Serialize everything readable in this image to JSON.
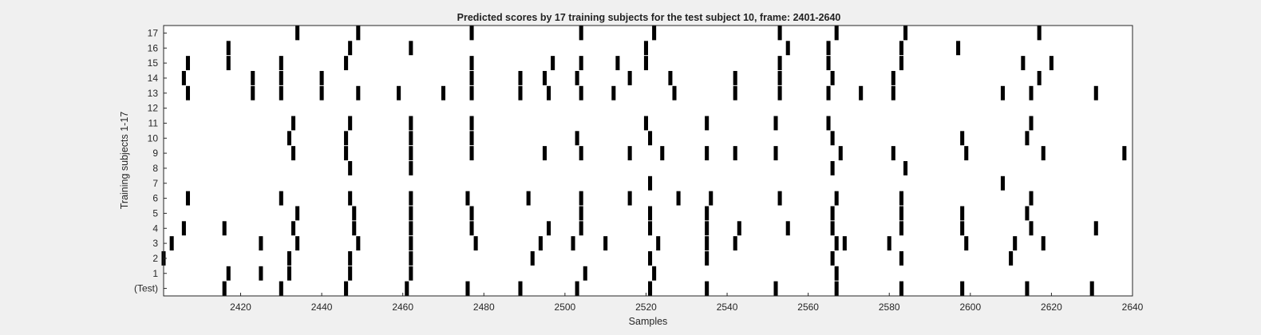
{
  "chart_data": {
    "type": "raster",
    "title": "Predicted scores by 17 training subjects for the test subject 10, frame: 2401-2640",
    "xlabel": "Samples",
    "ylabel": "Training subjects 1-17",
    "xlim": [
      2401,
      2640
    ],
    "x_ticks": [
      2420,
      2440,
      2460,
      2480,
      2500,
      2520,
      2540,
      2560,
      2580,
      2600,
      2620,
      2640
    ],
    "y_tick_labels": [
      "(Test)",
      "1",
      "2",
      "3",
      "4",
      "5",
      "6",
      "7",
      "8",
      "9",
      "10",
      "11",
      "12",
      "13",
      "14",
      "15",
      "16",
      "17"
    ],
    "mark_color": "#000000",
    "grid": false,
    "rows": [
      {
        "label": "(Test)",
        "x": [
          2416,
          2430,
          2446,
          2461,
          2476,
          2489,
          2503,
          2521,
          2535,
          2552,
          2567,
          2583,
          2598,
          2614,
          2630
        ]
      },
      {
        "label": "1",
        "x": [
          2417,
          2425,
          2432,
          2447,
          2462,
          2505,
          2522,
          2567
        ]
      },
      {
        "label": "2",
        "x": [
          2401,
          2432,
          2447,
          2462,
          2492,
          2521,
          2535,
          2566,
          2583,
          2610
        ]
      },
      {
        "label": "3",
        "x": [
          2403,
          2425,
          2434,
          2449,
          2462,
          2478,
          2494,
          2502,
          2510,
          2523,
          2535,
          2542,
          2567,
          2569,
          2580,
          2599,
          2611,
          2618
        ]
      },
      {
        "label": "4",
        "x": [
          2406,
          2416,
          2433,
          2448,
          2462,
          2477,
          2496,
          2504,
          2521,
          2535,
          2543,
          2555,
          2566,
          2583,
          2598,
          2615,
          2631
        ]
      },
      {
        "label": "5",
        "x": [
          2434,
          2448,
          2462,
          2477,
          2504,
          2521,
          2535,
          2566,
          2583,
          2598,
          2614
        ]
      },
      {
        "label": "6",
        "x": [
          2407,
          2430,
          2447,
          2462,
          2476,
          2491,
          2504,
          2516,
          2528,
          2536,
          2553,
          2567,
          2583,
          2615
        ]
      },
      {
        "label": "7",
        "x": [
          2521,
          2608
        ]
      },
      {
        "label": "8",
        "x": [
          2447,
          2462,
          2566,
          2584
        ]
      },
      {
        "label": "9",
        "x": [
          2433,
          2446,
          2462,
          2477,
          2495,
          2504,
          2516,
          2524,
          2535,
          2542,
          2552,
          2568,
          2581,
          2599,
          2618,
          2638
        ]
      },
      {
        "label": "10",
        "x": [
          2432,
          2446,
          2462,
          2477,
          2503,
          2521,
          2566,
          2598,
          2614
        ]
      },
      {
        "label": "11",
        "x": [
          2433,
          2447,
          2462,
          2477,
          2520,
          2535,
          2552,
          2565,
          2615
        ]
      },
      {
        "label": "12",
        "x": []
      },
      {
        "label": "13",
        "x": [
          2407,
          2423,
          2430,
          2440,
          2449,
          2459,
          2470,
          2477,
          2489,
          2496,
          2504,
          2512,
          2527,
          2542,
          2553,
          2565,
          2573,
          2581,
          2608,
          2615,
          2631
        ]
      },
      {
        "label": "14",
        "x": [
          2406,
          2423,
          2430,
          2440,
          2477,
          2489,
          2495,
          2503,
          2516,
          2526,
          2542,
          2553,
          2566,
          2581,
          2617
        ]
      },
      {
        "label": "15",
        "x": [
          2407,
          2417,
          2430,
          2446,
          2477,
          2497,
          2504,
          2513,
          2520,
          2553,
          2565,
          2583,
          2613,
          2620
        ]
      },
      {
        "label": "16",
        "x": [
          2417,
          2447,
          2462,
          2520,
          2555,
          2565,
          2583,
          2597
        ]
      },
      {
        "label": "17",
        "x": [
          2434,
          2449,
          2477,
          2504,
          2522,
          2553,
          2567,
          2584,
          2617
        ]
      }
    ]
  }
}
